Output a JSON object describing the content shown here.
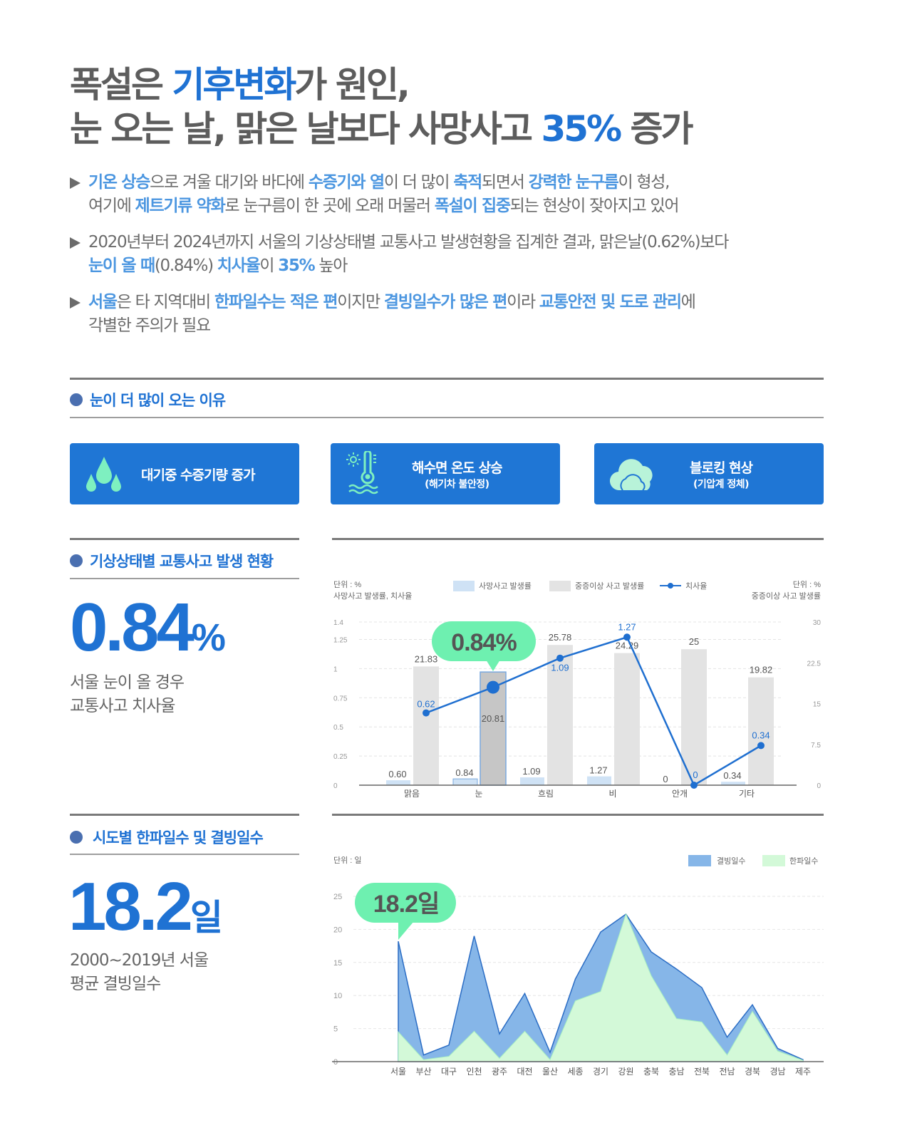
{
  "headline": {
    "line1": [
      {
        "t": "폭설은 ",
        "hl": false
      },
      {
        "t": "기후변화",
        "hl": true
      },
      {
        "t": "가 원인,",
        "hl": false
      }
    ],
    "line2": [
      {
        "t": "눈 오는 날, 맑은 날보다 사망사고 ",
        "hl": false
      },
      {
        "t": "35%",
        "hl": true
      },
      {
        "t": " 증가",
        "hl": false
      }
    ]
  },
  "bullets": [
    {
      "lines": [
        [
          {
            "t": "기온 상승",
            "b": true
          },
          {
            "t": "으로 겨울 대기와 바다에 ",
            "b": false
          },
          {
            "t": "수증기와 열",
            "b": true
          },
          {
            "t": "이 더 많이 ",
            "b": false
          },
          {
            "t": "축적",
            "b": true
          },
          {
            "t": "되면서 ",
            "b": false
          },
          {
            "t": "강력한 눈구름",
            "b": true
          },
          {
            "t": "이 형성,",
            "b": false
          }
        ],
        [
          {
            "t": "여기에 ",
            "b": false
          },
          {
            "t": "제트기류 약화",
            "b": true
          },
          {
            "t": "로 눈구름이 한 곳에 오래 머물러 ",
            "b": false
          },
          {
            "t": "폭설이 집중",
            "b": true
          },
          {
            "t": "되는 현상이 잦아지고 있어",
            "b": false
          }
        ]
      ]
    },
    {
      "lines": [
        [
          {
            "t": "2020년부터 2024년까지 서울의 기상상태별 교통사고 발생현황을 집계한 결과, 맑은날(0.62%)보다",
            "b": false
          }
        ],
        [
          {
            "t": "눈이 올 때",
            "b": true
          },
          {
            "t": "(0.84%) ",
            "b": false
          },
          {
            "t": "치사율",
            "b": true
          },
          {
            "t": "이 ",
            "b": false
          },
          {
            "t": "35%",
            "b": true
          },
          {
            "t": " 높아",
            "b": false
          }
        ]
      ]
    },
    {
      "lines": [
        [
          {
            "t": "서울",
            "b": true
          },
          {
            "t": "은 타 지역대비 ",
            "b": false
          },
          {
            "t": "한파일수는 적은 편",
            "b": true
          },
          {
            "t": "이지만 ",
            "b": false
          },
          {
            "t": "결빙일수가 많은 편",
            "b": true
          },
          {
            "t": "이라 ",
            "b": false
          },
          {
            "t": "교통안전 및 도로 관리",
            "b": true
          },
          {
            "t": "에",
            "b": false
          }
        ],
        [
          {
            "t": "각별한 주의가 필요",
            "b": false
          }
        ]
      ]
    }
  ],
  "section1": {
    "title": "눈이 더 많이 오는 이유",
    "cards": [
      {
        "icon": "water-drops-icon",
        "label": "대기중 수증기량 증가",
        "sub": ""
      },
      {
        "icon": "thermometer-sea-icon",
        "label": "해수면 온도 상승",
        "sub": "(해기차 불안정)"
      },
      {
        "icon": "cloud-icon",
        "label": "블로킹 현상",
        "sub": "(기압계 정체)"
      }
    ]
  },
  "section2": {
    "title": "기상상태별 교통사고 발생 현황",
    "big_value": "0.84",
    "big_unit": "%",
    "desc_line1": "서울 눈이 올 경우",
    "desc_line2": "교통사고 치사율",
    "callout": "0.84%"
  },
  "section3": {
    "title": "시도별 한파일수 및 결빙일수",
    "big_value": "18.2",
    "big_unit": "일",
    "desc_line1": "2000~2019년 서울",
    "desc_line2": "평균 결빙일수",
    "callout": "18.2일"
  },
  "colors": {
    "accent": "#1f72d3",
    "card": "#1f76d5",
    "callout": "#6ef0b0",
    "icon_mint": "#7ef0c0",
    "bar_light_blue": "#cfe2f5",
    "bar_gray": "#e3e3e3",
    "bar_highlight": "#c6c6c6",
    "line": "#1f6fd0",
    "area_blue": "#86b6e8",
    "area_green": "#d3f9d8"
  },
  "chart_data": [
    {
      "type": "bar",
      "title": "기상상태별 교통사고 발생 현황",
      "unit_left_label": "단위 : %",
      "unit_left_sub": "사망사고 발생률, 치사율",
      "unit_right_label": "단위 : %",
      "unit_right_sub": "중증이상 사고 발생률",
      "categories": [
        "맑음",
        "눈",
        "흐림",
        "비",
        "안개",
        "기타"
      ],
      "series": [
        {
          "name": "사망사고 발생률",
          "type": "bar",
          "axis": "left",
          "values": [
            0.6,
            0.84,
            1.09,
            1.27,
            0,
            0.34
          ],
          "labels": [
            "0.60",
            "0.84",
            "1.09",
            "1.27",
            "0",
            "0.34"
          ]
        },
        {
          "name": "중증이상 사고 발생률",
          "type": "bar",
          "axis": "right",
          "values": [
            21.83,
            20.81,
            25.78,
            24.29,
            25,
            19.82
          ],
          "labels": [
            "21.83",
            "20.81",
            "25.78",
            "24.29",
            "25",
            "19.82"
          ]
        },
        {
          "name": "치사율",
          "type": "line",
          "axis": "left",
          "values": [
            0.62,
            0.84,
            1.09,
            1.27,
            0,
            0.34
          ],
          "labels": [
            "0.62",
            "",
            "1.09",
            "1.27",
            "0",
            "0.34"
          ]
        }
      ],
      "left_ticks": [
        "0",
        "0.25",
        "0.5",
        "0.75",
        "1",
        "1.25",
        "1.4"
      ],
      "left_tick_values": [
        0,
        0.25,
        0.5,
        0.75,
        1,
        1.25,
        1.4
      ],
      "right_ticks": [
        "0",
        "7.5",
        "15",
        "22.5",
        "30"
      ],
      "right_tick_values": [
        0,
        7.5,
        15,
        22.5,
        30
      ],
      "ylim_left": [
        0,
        1.4
      ],
      "ylim_right": [
        0,
        30
      ],
      "highlight_index": 1,
      "grid": true,
      "legend_position": "top"
    },
    {
      "type": "area",
      "title": "시도별 한파일수 및 결빙일수",
      "unit_label": "단위 : 일",
      "categories": [
        "서울",
        "부산",
        "대구",
        "인천",
        "광주",
        "대전",
        "울산",
        "세종",
        "경기",
        "강원",
        "충북",
        "충남",
        "전북",
        "전남",
        "경북",
        "경남",
        "제주"
      ],
      "series": [
        {
          "name": "결빙일수",
          "values": [
            18.2,
            1.0,
            2.5,
            19.0,
            4.2,
            10.3,
            1.4,
            12.5,
            19.6,
            22.3,
            16.6,
            14.0,
            11.2,
            3.7,
            8.6,
            2.0,
            0.3
          ]
        },
        {
          "name": "한파일수",
          "values": [
            4.5,
            0.3,
            0.8,
            4.6,
            0.5,
            4.6,
            0.3,
            9.2,
            10.6,
            22.3,
            13.0,
            6.5,
            6.0,
            1.0,
            7.6,
            1.6,
            0.2
          ]
        }
      ],
      "y_ticks": [
        "0",
        "5",
        "10",
        "15",
        "20",
        "25"
      ],
      "y_tick_values": [
        0,
        5,
        10,
        15,
        20,
        25
      ],
      "ylim": [
        0,
        25
      ],
      "grid": true,
      "legend_position": "top-right"
    }
  ]
}
